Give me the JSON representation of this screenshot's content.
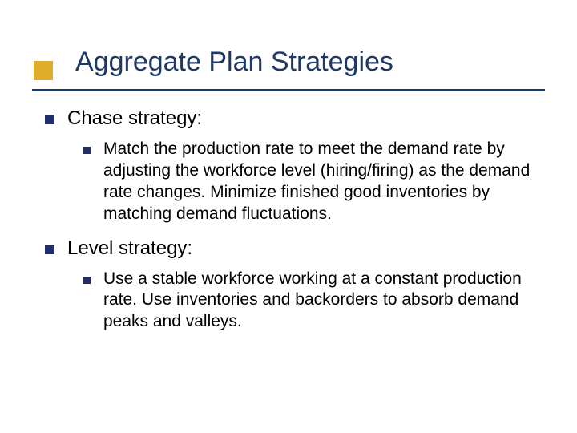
{
  "slide": {
    "title": "Aggregate Plan Strategies",
    "title_color": "#1f3864",
    "title_fontsize": 34,
    "accent_box_color": "#dfad2a",
    "underline_color": "#0c3c78",
    "bullet_color": "#1f2f6a",
    "body_text_color": "#000000",
    "lvl1_fontsize": 24,
    "lvl2_fontsize": 21,
    "background_color": "#ffffff"
  },
  "items": [
    {
      "label": "Chase strategy:",
      "children": [
        "Match the production rate to meet the demand rate by adjusting the workforce level (hiring/firing) as the demand rate changes. Minimize finished good inventories by matching demand fluctuations."
      ]
    },
    {
      "label": "Level strategy:",
      "children": [
        "Use a stable workforce working at a constant production rate.  Use inventories and backorders to absorb demand peaks and valleys."
      ]
    }
  ]
}
